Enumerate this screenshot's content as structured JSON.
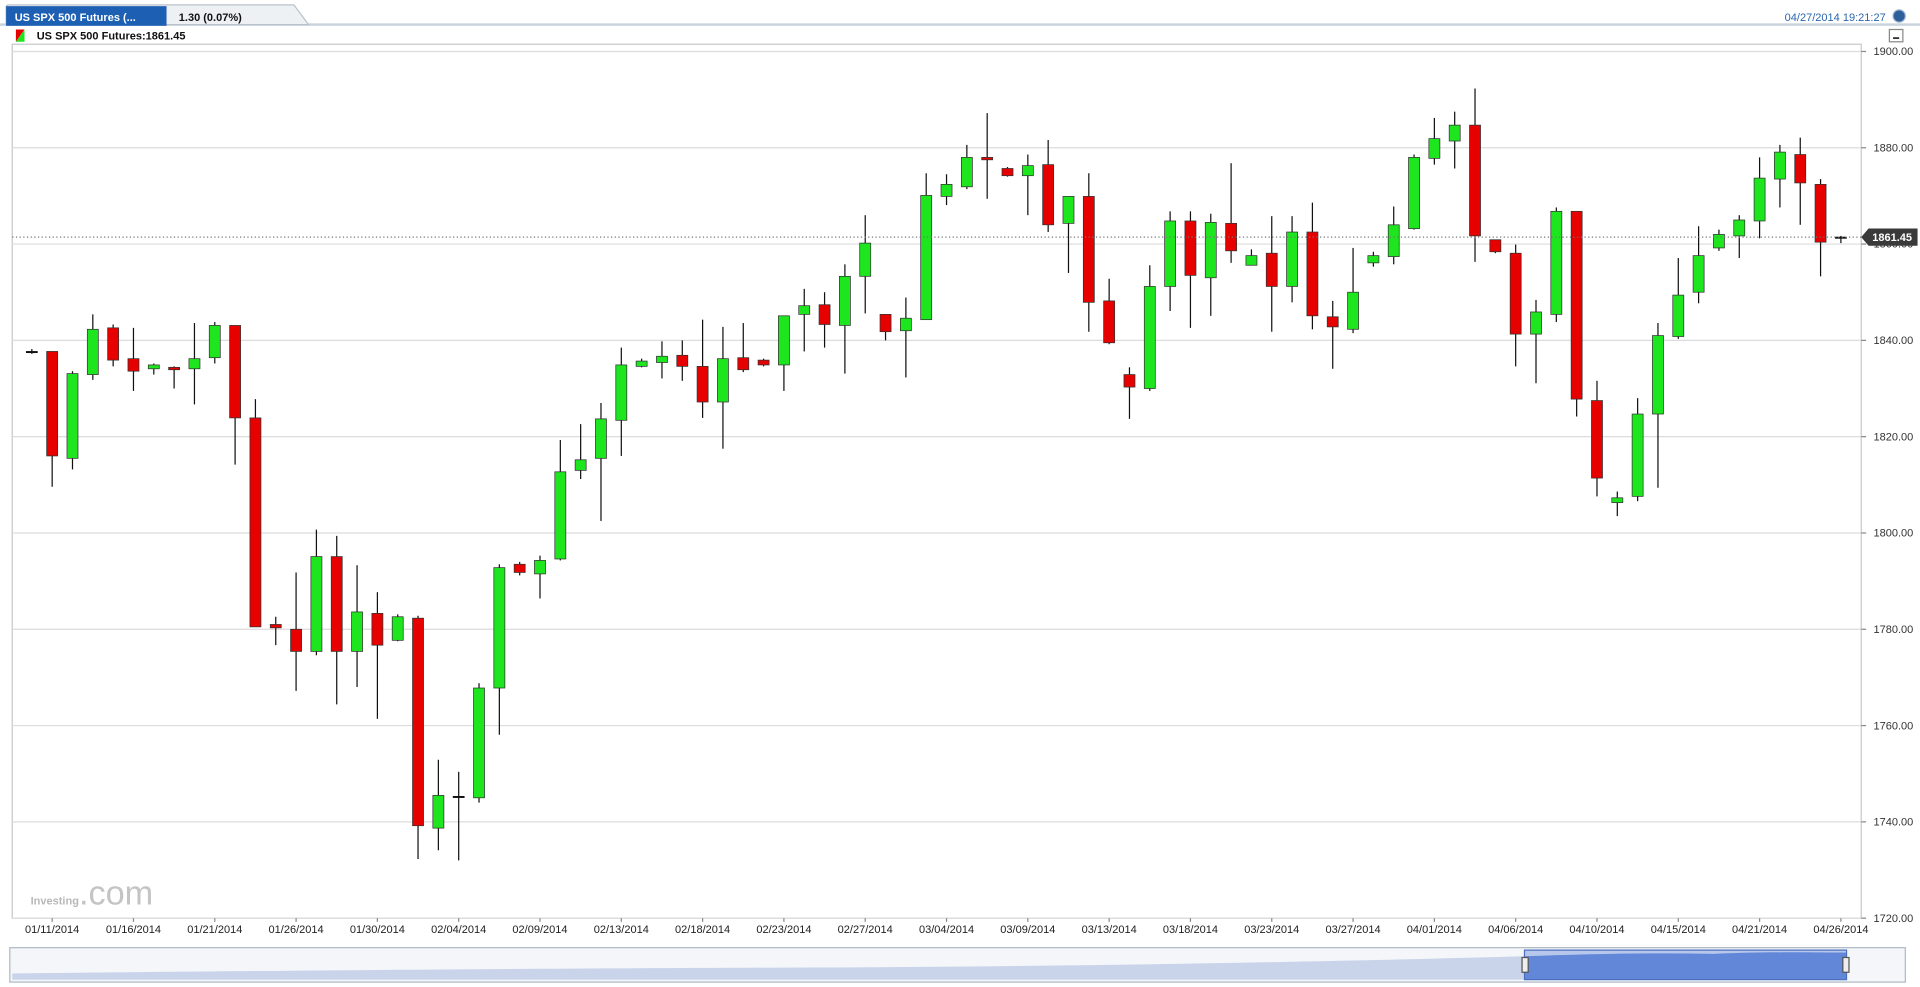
{
  "chart_data": {
    "type": "candlestick",
    "tab_title": "US SPX 500 Futures (...",
    "change": "1.30 (0.07%)",
    "timestamp": "04/27/2014 19:21:27",
    "legend": "US SPX 500 Futures:1861.45",
    "watermark": [
      "Investing",
      ".com"
    ],
    "last_price": {
      "value": 1861.45,
      "label": "1861.45"
    },
    "up_color": "#1ee61e",
    "down_color": "#e60000",
    "grid": true,
    "ylim": [
      1720,
      1901.5
    ],
    "yticks": [
      {
        "value": 1720,
        "label": "1720.00"
      },
      {
        "value": 1740,
        "label": "1740.00"
      },
      {
        "value": 1760,
        "label": "1760.00"
      },
      {
        "value": 1780,
        "label": "1780.00"
      },
      {
        "value": 1800,
        "label": "1800.00"
      },
      {
        "value": 1820,
        "label": "1820.00"
      },
      {
        "value": 1840,
        "label": "1840.00"
      },
      {
        "value": 1860,
        "label": "1860.00"
      },
      {
        "value": 1880,
        "label": "1880.00"
      },
      {
        "value": 1900,
        "label": "1900.00"
      }
    ],
    "categories": [
      null,
      "01/11/2014",
      null,
      null,
      null,
      "01/16/2014",
      null,
      null,
      null,
      "01/21/2014",
      null,
      null,
      null,
      "01/26/2014",
      null,
      null,
      null,
      "01/30/2014",
      null,
      null,
      null,
      "02/04/2014",
      null,
      null,
      null,
      "02/09/2014",
      null,
      null,
      null,
      "02/13/2014",
      null,
      null,
      null,
      "02/18/2014",
      null,
      null,
      null,
      "02/23/2014",
      null,
      null,
      null,
      "02/27/2014",
      null,
      null,
      null,
      "03/04/2014",
      null,
      null,
      null,
      "03/09/2014",
      null,
      null,
      null,
      "03/13/2014",
      null,
      null,
      null,
      "03/18/2014",
      null,
      null,
      null,
      "03/23/2014",
      null,
      null,
      null,
      "03/27/2014",
      null,
      null,
      null,
      "04/01/2014",
      null,
      null,
      null,
      "04/06/2014",
      null,
      null,
      null,
      "04/10/2014",
      null,
      null,
      null,
      "04/15/2014",
      null,
      null,
      null,
      "04/21/2014",
      null,
      null,
      null,
      "04/26/2014"
    ],
    "open": [
      1837.7,
      1837.7,
      1815.5,
      1832.9,
      1842.6,
      1836.2,
      1834.1,
      1834.4,
      1834.1,
      1836.4,
      1843.1,
      1823.9,
      1781.0,
      1780.0,
      1775.4,
      1795.1,
      1775.4,
      1783.3,
      1777.7,
      1782.3,
      1738.7,
      1745.3,
      1745.0,
      1767.8,
      1793.5,
      1791.5,
      1794.6,
      1813.0,
      1815.5,
      1823.4,
      1834.6,
      1835.4,
      1836.9,
      1834.6,
      1827.2,
      1836.4,
      1835.9,
      1834.9,
      1845.4,
      1847.4,
      1843.1,
      1853.3,
      1845.4,
      1842.0,
      1844.3,
      1869.9,
      1871.9,
      1878.0,
      1875.7,
      1874.2,
      1876.5,
      1864.3,
      1869.9,
      1848.2,
      1832.9,
      1830.0,
      1851.2,
      1864.8,
      1853.0,
      1864.3,
      1855.6,
      1858.1,
      1851.2,
      1862.5,
      1844.9,
      1842.3,
      1856.1,
      1857.4,
      1863.2,
      1877.8,
      1881.4,
      1884.7,
      1860.9,
      1858.1,
      1841.3,
      1845.4,
      1866.8,
      1827.5,
      1806.3,
      1807.6,
      1824.7,
      1840.8,
      1850.0,
      1859.2,
      1861.7,
      1864.8,
      1873.5,
      1878.6,
      1872.4,
      1861.45
    ],
    "high": [
      1838.2,
      1837.7,
      1833.6,
      1845.4,
      1843.3,
      1842.6,
      1835.2,
      1834.6,
      1843.6,
      1843.8,
      1843.1,
      1827.8,
      1782.6,
      1791.8,
      1800.7,
      1799.4,
      1793.3,
      1787.7,
      1783.1,
      1782.8,
      1752.9,
      1750.4,
      1768.8,
      1793.5,
      1794.0,
      1795.3,
      1819.3,
      1822.6,
      1827.0,
      1838.5,
      1836.2,
      1839.8,
      1840.0,
      1844.3,
      1842.8,
      1843.6,
      1836.2,
      1845.1,
      1850.7,
      1850.0,
      1855.8,
      1866.0,
      1845.4,
      1848.9,
      1874.7,
      1874.5,
      1880.6,
      1887.2,
      1876.0,
      1878.6,
      1881.6,
      1869.9,
      1874.7,
      1852.8,
      1834.4,
      1855.6,
      1866.8,
      1866.8,
      1866.3,
      1876.8,
      1858.9,
      1865.8,
      1865.8,
      1868.6,
      1848.2,
      1859.2,
      1858.4,
      1867.8,
      1878.6,
      1886.2,
      1887.5,
      1892.3,
      1860.9,
      1859.9,
      1848.4,
      1867.6,
      1866.8,
      1831.6,
      1808.6,
      1828.0,
      1843.6,
      1857.1,
      1863.7,
      1863.0,
      1866.0,
      1878.0,
      1880.6,
      1882.1,
      1873.5,
      1861.7
    ],
    "low": [
      1837.2,
      1809.6,
      1813.2,
      1831.8,
      1834.6,
      1829.5,
      1832.9,
      1830.0,
      1826.7,
      1835.2,
      1814.2,
      1780.5,
      1776.7,
      1767.2,
      1774.6,
      1764.4,
      1768.0,
      1761.4,
      1777.5,
      1732.3,
      1734.1,
      1732.0,
      1744.0,
      1758.1,
      1791.2,
      1786.4,
      1794.3,
      1811.2,
      1802.5,
      1816.0,
      1834.4,
      1832.1,
      1831.6,
      1823.9,
      1817.5,
      1833.4,
      1834.6,
      1829.5,
      1837.7,
      1838.5,
      1833.1,
      1845.6,
      1840.0,
      1832.3,
      1844.3,
      1868.1,
      1871.4,
      1869.4,
      1874.0,
      1866.0,
      1862.5,
      1854.0,
      1841.8,
      1839.2,
      1823.7,
      1829.5,
      1846.1,
      1842.6,
      1845.1,
      1856.1,
      1855.6,
      1841.8,
      1847.9,
      1842.3,
      1834.1,
      1841.5,
      1855.3,
      1855.8,
      1863.0,
      1876.5,
      1875.7,
      1856.3,
      1858.1,
      1834.6,
      1831.1,
      1843.8,
      1824.2,
      1807.6,
      1803.5,
      1806.6,
      1809.4,
      1840.3,
      1847.7,
      1858.6,
      1857.1,
      1861.2,
      1867.6,
      1864.0,
      1853.3,
      1860.2
    ],
    "close": [
      1837.7,
      1816.0,
      1833.1,
      1842.3,
      1835.9,
      1833.6,
      1834.9,
      1833.9,
      1836.2,
      1843.1,
      1823.9,
      1780.5,
      1780.3,
      1775.4,
      1795.1,
      1775.4,
      1783.6,
      1776.7,
      1782.6,
      1739.2,
      1745.5,
      1745.3,
      1767.8,
      1792.8,
      1791.8,
      1794.3,
      1812.7,
      1815.2,
      1823.7,
      1834.9,
      1835.7,
      1836.7,
      1834.6,
      1827.2,
      1836.2,
      1833.9,
      1834.9,
      1845.1,
      1847.2,
      1843.3,
      1853.3,
      1860.2,
      1841.8,
      1844.6,
      1870.1,
      1872.4,
      1878.0,
      1877.5,
      1874.2,
      1876.3,
      1864.0,
      1869.9,
      1847.9,
      1839.5,
      1830.3,
      1851.2,
      1864.8,
      1853.5,
      1864.5,
      1858.6,
      1857.6,
      1851.2,
      1862.5,
      1845.1,
      1842.8,
      1850.0,
      1857.6,
      1864.0,
      1878.0,
      1881.9,
      1884.7,
      1861.7,
      1858.4,
      1841.3,
      1845.9,
      1866.8,
      1827.8,
      1811.4,
      1807.3,
      1824.7,
      1841.0,
      1849.4,
      1857.6,
      1862.0,
      1865.0,
      1873.7,
      1879.1,
      1872.7,
      1860.4,
      1861.45
    ]
  }
}
